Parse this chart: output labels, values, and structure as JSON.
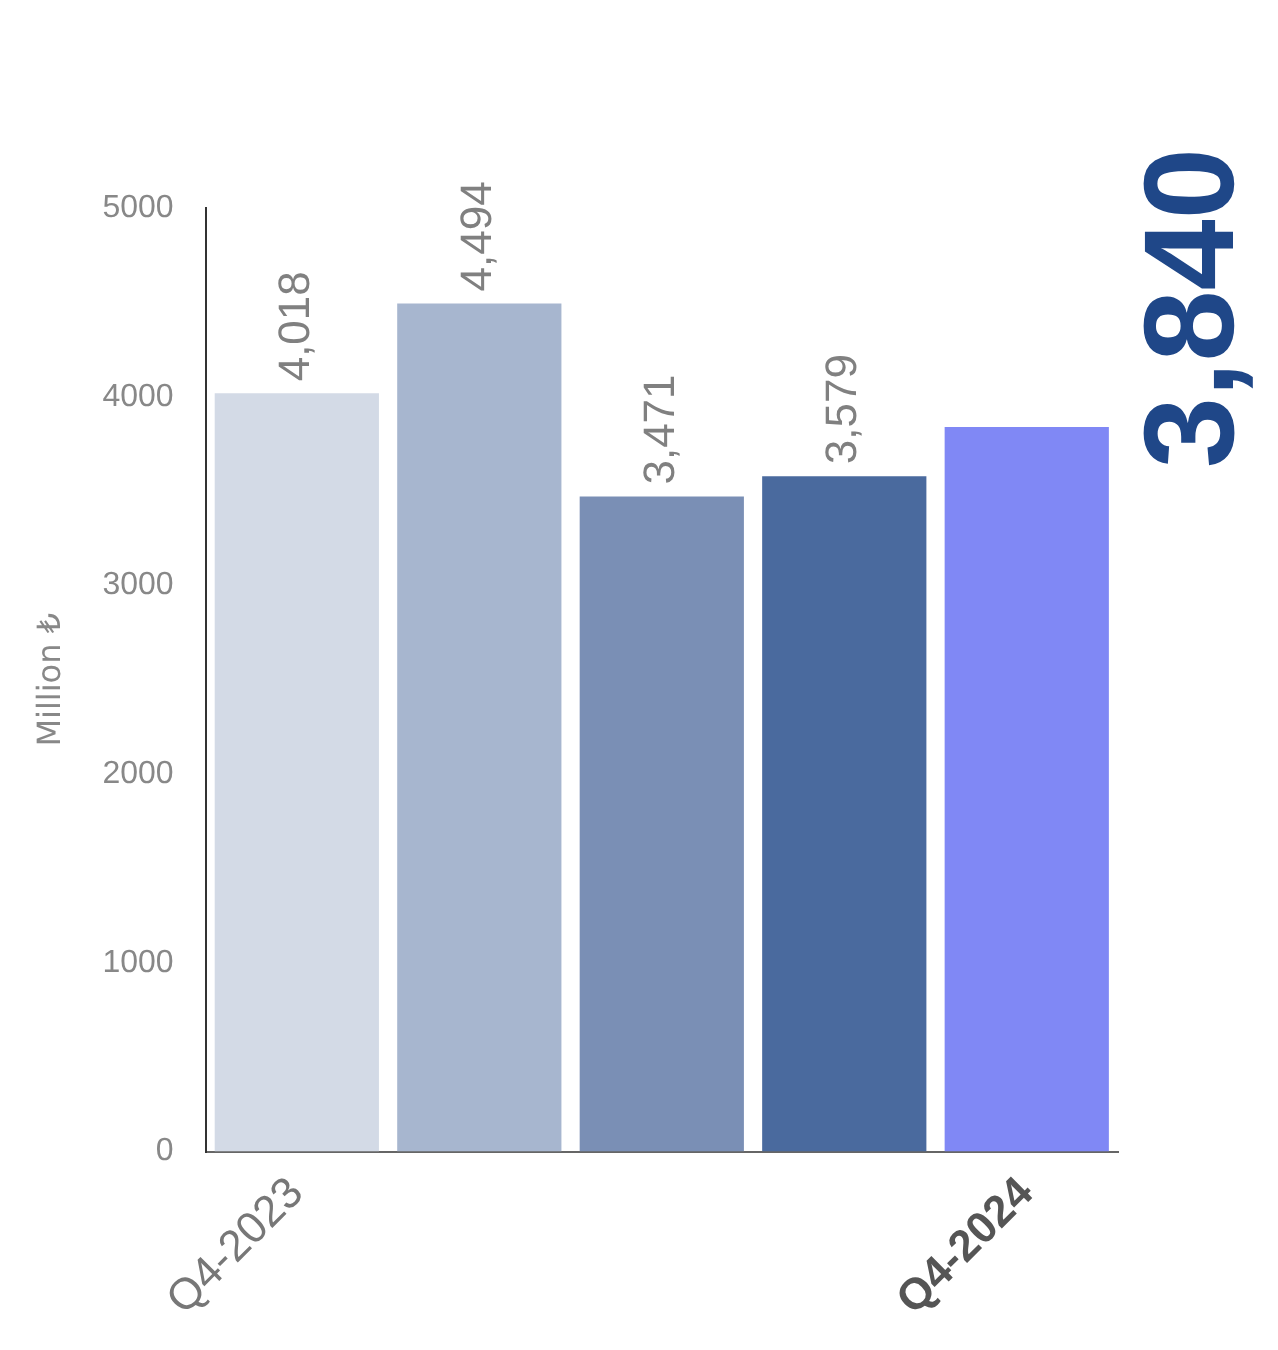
{
  "chart_data": {
    "type": "bar",
    "ylabel": "Million ₺",
    "categories": [
      "Q4-2023",
      null,
      null,
      null,
      "Q4-2024"
    ],
    "values": [
      4018,
      4494,
      3471,
      3579,
      3840
    ],
    "value_labels": [
      "4,018",
      "4,494",
      "3,471",
      "3,579",
      "3,840"
    ],
    "colors": [
      "#d3dae6",
      "#a7b6cf",
      "#7a8fb5",
      "#4a6a9e",
      "#8088f5"
    ],
    "ylim": [
      0,
      5000
    ],
    "yticks": [
      0,
      1000,
      2000,
      3000,
      4000,
      5000
    ],
    "grid": false,
    "legend": false
  }
}
